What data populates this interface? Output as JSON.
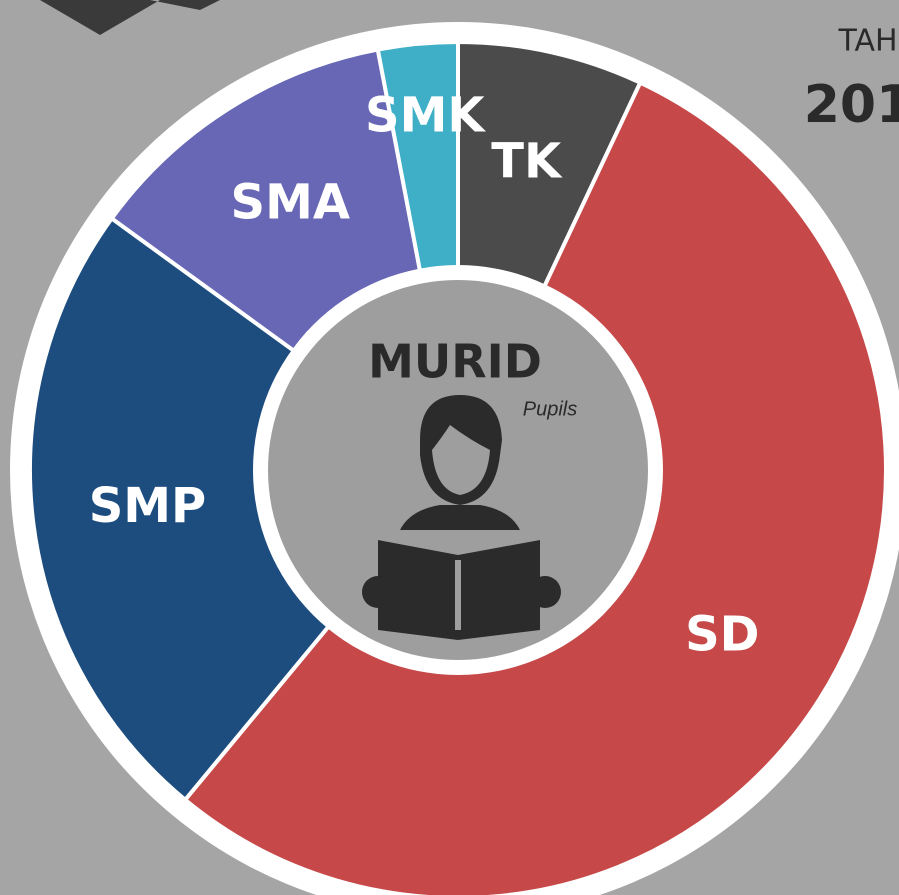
{
  "chart_data": {
    "type": "donut",
    "title": "MURID",
    "subtitle": "Pupils",
    "categories": [
      "TK",
      "SD",
      "SMP",
      "SMA",
      "SMK"
    ],
    "values": [
      7,
      54,
      24,
      12,
      3
    ],
    "colors": [
      "#4b4b4b",
      "#c64848",
      "#1d4d7f",
      "#6767b5",
      "#3eafc7"
    ]
  },
  "side_text": {
    "label": "TAH",
    "year": "201"
  }
}
